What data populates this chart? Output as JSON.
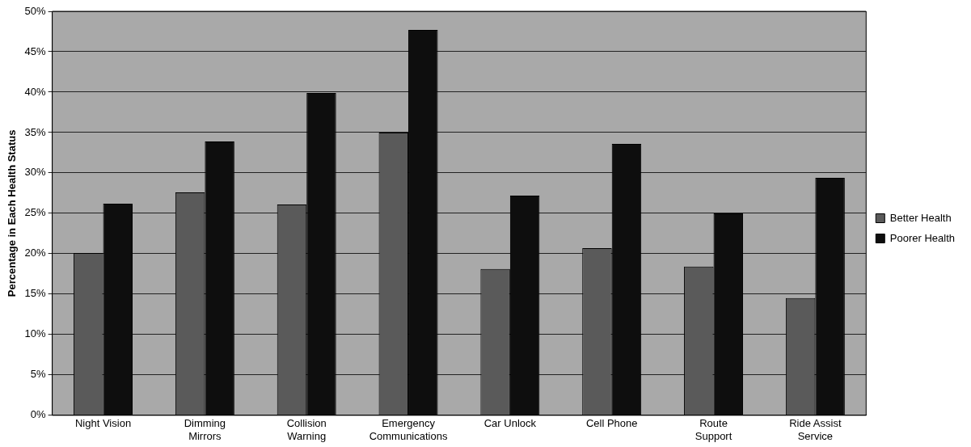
{
  "chart_data": {
    "type": "bar",
    "ylabel": "Percentage in Each Health Status",
    "categories": [
      "Night Vision",
      "Dimming Mirrors",
      "Collision Warning",
      "Emergency Communications",
      "Car Unlock",
      "Cell Phone",
      "Route Support",
      "Ride Assist Service"
    ],
    "series": [
      {
        "name": "Better Health",
        "color": "#5a5a5a",
        "values": [
          20.1,
          27.6,
          26.1,
          35.0,
          18.1,
          20.7,
          18.4,
          14.5
        ]
      },
      {
        "name": "Poorer Health",
        "color": "#0e0e0e",
        "values": [
          26.2,
          33.9,
          39.9,
          47.7,
          27.2,
          33.6,
          25.0,
          29.4
        ]
      }
    ],
    "ylim": [
      0,
      50
    ],
    "yticks": [
      {
        "value": 0,
        "label": "0%"
      },
      {
        "value": 5,
        "label": "5%"
      },
      {
        "value": 10,
        "label": "10%"
      },
      {
        "value": 15,
        "label": "15%"
      },
      {
        "value": 20,
        "label": "20%"
      },
      {
        "value": 25,
        "label": "25%"
      },
      {
        "value": 30,
        "label": "30%"
      },
      {
        "value": 35,
        "label": "35%"
      },
      {
        "value": 40,
        "label": "40%"
      },
      {
        "value": 45,
        "label": "45%"
      },
      {
        "value": 50,
        "label": "50%"
      }
    ],
    "grid": "y",
    "legend": "right"
  }
}
